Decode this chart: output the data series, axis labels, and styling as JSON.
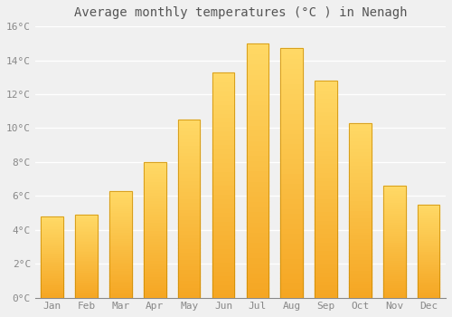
{
  "title": "Average monthly temperatures (°C ) in Nenagh",
  "months": [
    "Jan",
    "Feb",
    "Mar",
    "Apr",
    "May",
    "Jun",
    "Jul",
    "Aug",
    "Sep",
    "Oct",
    "Nov",
    "Dec"
  ],
  "values": [
    4.8,
    4.9,
    6.3,
    8.0,
    10.5,
    13.3,
    15.0,
    14.7,
    12.8,
    10.3,
    6.6,
    5.5
  ],
  "bar_color_bottom": "#F5A623",
  "bar_color_top": "#FFD966",
  "bar_edge_color": "#C98A00",
  "ylim": [
    0,
    16
  ],
  "yticks": [
    0,
    2,
    4,
    6,
    8,
    10,
    12,
    14,
    16
  ],
  "ytick_labels": [
    "0°C",
    "2°C",
    "4°C",
    "6°C",
    "8°C",
    "10°C",
    "12°C",
    "14°C",
    "16°C"
  ],
  "background_color": "#f0f0f0",
  "plot_bg_color": "#f0f0f0",
  "grid_color": "#ffffff",
  "title_fontsize": 10,
  "tick_fontsize": 8,
  "bar_width": 0.65
}
